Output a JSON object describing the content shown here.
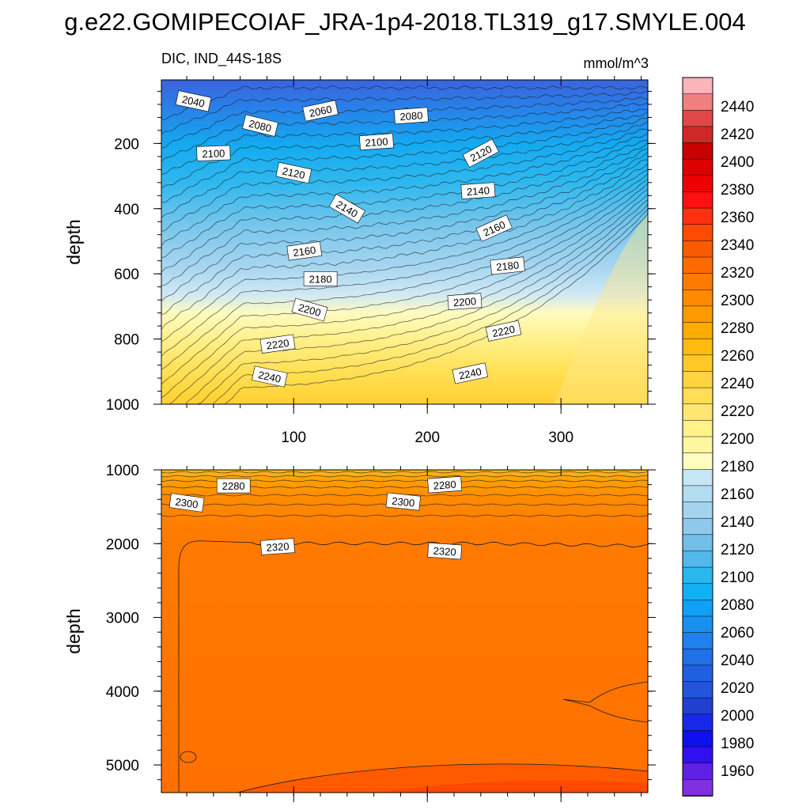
{
  "title": "g.e22.GOMIPECOIAF_JRA-1p4-2018.TL319_g17.SMYLE.004",
  "subtitle_left": "DIC, IND_44S-18S",
  "subtitle_right": "mmol/m^3",
  "chart_data": [
    {
      "type": "contour",
      "panel": "upper",
      "ylabel": "depth",
      "xlabel": "",
      "xlim": [
        1,
        365
      ],
      "ylim": [
        1000,
        5
      ],
      "y_inverted": true,
      "xticks": [
        100,
        200,
        300
      ],
      "yticks": [
        200,
        400,
        600,
        800,
        1000
      ],
      "contour_labels": [
        {
          "x": 25,
          "y": 70,
          "value": "2040"
        },
        {
          "x": 120,
          "y": 100,
          "value": "2060"
        },
        {
          "x": 188,
          "y": 115,
          "value": "2080"
        },
        {
          "x": 75,
          "y": 145,
          "value": "2080"
        },
        {
          "x": 40,
          "y": 230,
          "value": "2100"
        },
        {
          "x": 162,
          "y": 195,
          "value": "2100"
        },
        {
          "x": 240,
          "y": 230,
          "value": "2120"
        },
        {
          "x": 100,
          "y": 290,
          "value": "2120"
        },
        {
          "x": 140,
          "y": 400,
          "value": "2140"
        },
        {
          "x": 238,
          "y": 345,
          "value": "2140"
        },
        {
          "x": 250,
          "y": 460,
          "value": "2160"
        },
        {
          "x": 108,
          "y": 530,
          "value": "2160"
        },
        {
          "x": 260,
          "y": 575,
          "value": "2180"
        },
        {
          "x": 120,
          "y": 615,
          "value": "2180"
        },
        {
          "x": 112,
          "y": 710,
          "value": "2200"
        },
        {
          "x": 228,
          "y": 685,
          "value": "2200"
        },
        {
          "x": 257,
          "y": 775,
          "value": "2220"
        },
        {
          "x": 88,
          "y": 815,
          "value": "2220"
        },
        {
          "x": 82,
          "y": 915,
          "value": "2240"
        },
        {
          "x": 232,
          "y": 905,
          "value": "2240"
        }
      ]
    },
    {
      "type": "contour",
      "panel": "lower",
      "ylabel": "depth",
      "xlabel": "",
      "xlim": [
        1,
        365
      ],
      "ylim": [
        1000,
        5375
      ],
      "y_inverted": true,
      "xticks": [
        100,
        200,
        300
      ],
      "yticks": [
        1000,
        2000,
        3000,
        4000,
        5000
      ],
      "contour_labels": [
        {
          "x": 55,
          "y": 1215,
          "value": "2280"
        },
        {
          "x": 213,
          "y": 1200,
          "value": "2280"
        },
        {
          "x": 20,
          "y": 1445,
          "value": "2300"
        },
        {
          "x": 182,
          "y": 1430,
          "value": "2300"
        },
        {
          "x": 88,
          "y": 2040,
          "value": "2320"
        },
        {
          "x": 213,
          "y": 2100,
          "value": "2320"
        }
      ]
    }
  ],
  "colorbar": {
    "labels": [
      "2440",
      "2420",
      "2400",
      "2380",
      "2360",
      "2340",
      "2320",
      "2300",
      "2280",
      "2260",
      "2240",
      "2220",
      "2200",
      "2180",
      "2160",
      "2140",
      "2120",
      "2100",
      "2080",
      "2060",
      "2040",
      "2020",
      "2000",
      "1980",
      "1960"
    ],
    "colors": [
      "#fbb4b9",
      "#f08080",
      "#e04848",
      "#d02828",
      "#c80000",
      "#dd0000",
      "#ee0000",
      "#ff1010",
      "#ff3010",
      "#ff4a00",
      "#fa5a00",
      "#ff6a00",
      "#ff7a00",
      "#ff8a00",
      "#ff9a00",
      "#ffab00",
      "#ffbb10",
      "#ffc828",
      "#ffd440",
      "#ffdd55",
      "#ffe670",
      "#fff28a",
      "#fff6a0",
      "#fffcc0",
      "#c6e6f6",
      "#b2dcf2",
      "#a2d4ee",
      "#8ec8ec",
      "#72bfea",
      "#50b8ea",
      "#2ab6ef",
      "#10b0f5",
      "#10a0f5",
      "#1890f0",
      "#2080ec",
      "#2070e6",
      "#2060e0",
      "#2255da",
      "#2040d0",
      "#1828e8",
      "#1010ee",
      "#3010ee",
      "#6020e6",
      "#8030e0"
    ]
  }
}
